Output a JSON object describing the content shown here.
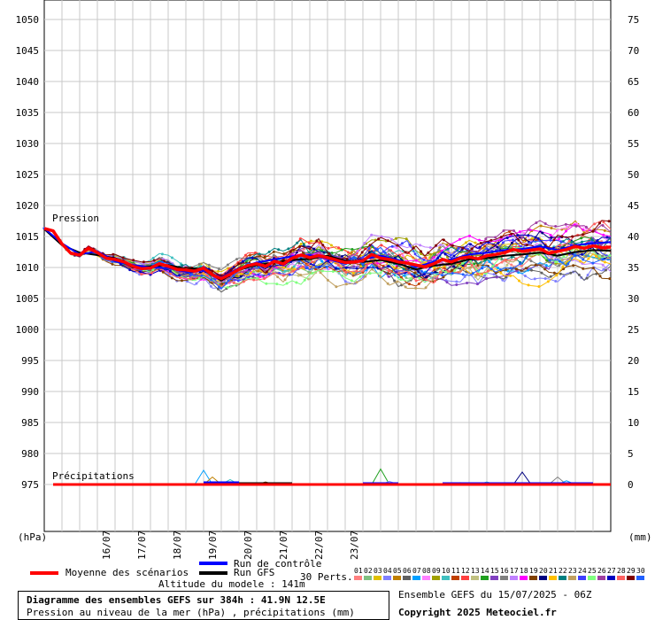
{
  "chart_data": {
    "type": "line",
    "left_axis": {
      "label": "(hPa)",
      "ticks": [
        1050,
        1045,
        1040,
        1035,
        1030,
        1025,
        1020,
        1015,
        1010,
        1005,
        1000,
        995,
        990,
        985,
        980,
        975
      ],
      "range": [
        966.8,
        1051.9
      ]
    },
    "right_axis": {
      "label": "(mm)",
      "ticks": [
        75,
        70,
        65,
        60,
        55,
        50,
        45,
        40,
        35,
        30,
        25,
        20,
        15,
        10,
        5,
        0
      ],
      "range": [
        -11.7,
        76.9
      ]
    },
    "x_labels": [
      "16/07",
      "17/07",
      "18/07",
      "19/07",
      "20/07",
      "21/07",
      "22/07",
      "23/07"
    ],
    "x_range_hours": [
      0,
      384
    ],
    "grid": true,
    "pressure_label": "Pression",
    "precip_label": "Précipitations",
    "mean_pressure": [
      [
        0,
        1016.3
      ],
      [
        6,
        1015.9
      ],
      [
        12,
        1013.8
      ],
      [
        18,
        1012.3
      ],
      [
        24,
        1012.0
      ],
      [
        30,
        1013.1
      ],
      [
        36,
        1012.4
      ],
      [
        42,
        1011.5
      ],
      [
        48,
        1011.3
      ],
      [
        54,
        1010.9
      ],
      [
        60,
        1010.2
      ],
      [
        66,
        1009.8
      ],
      [
        72,
        1009.9
      ],
      [
        78,
        1010.6
      ],
      [
        84,
        1010.2
      ],
      [
        90,
        1009.7
      ],
      [
        96,
        1009.6
      ],
      [
        102,
        1009.4
      ],
      [
        108,
        1009.9
      ],
      [
        114,
        1008.8
      ],
      [
        120,
        1008.2
      ],
      [
        126,
        1008.9
      ],
      [
        132,
        1009.7
      ],
      [
        138,
        1010.3
      ],
      [
        144,
        1010.6
      ],
      [
        150,
        1010.2
      ],
      [
        156,
        1011.0
      ],
      [
        162,
        1010.6
      ],
      [
        168,
        1011.5
      ],
      [
        174,
        1012.0
      ],
      [
        180,
        1011.6
      ],
      [
        186,
        1011.9
      ],
      [
        192,
        1011.6
      ],
      [
        198,
        1011.2
      ],
      [
        204,
        1010.8
      ],
      [
        210,
        1010.9
      ],
      [
        216,
        1011.1
      ],
      [
        222,
        1012.1
      ],
      [
        228,
        1011.5
      ],
      [
        234,
        1011.3
      ],
      [
        240,
        1010.9
      ],
      [
        246,
        1010.7
      ],
      [
        252,
        1010.4
      ],
      [
        258,
        1010.1
      ],
      [
        264,
        1010.6
      ],
      [
        270,
        1011.3
      ],
      [
        276,
        1010.9
      ],
      [
        282,
        1011.5
      ],
      [
        288,
        1011.7
      ],
      [
        294,
        1011.4
      ],
      [
        300,
        1011.9
      ],
      [
        306,
        1012.1
      ],
      [
        312,
        1012.4
      ],
      [
        318,
        1012.9
      ],
      [
        324,
        1012.6
      ],
      [
        330,
        1012.8
      ],
      [
        336,
        1013.0
      ],
      [
        342,
        1012.3
      ],
      [
        348,
        1012.6
      ],
      [
        354,
        1012.9
      ],
      [
        360,
        1013.4
      ],
      [
        366,
        1013.1
      ],
      [
        372,
        1013.5
      ],
      [
        378,
        1013.2
      ],
      [
        384,
        1013.3
      ]
    ],
    "control_pressure": [
      [
        0,
        1016.3
      ],
      [
        12,
        1013.9
      ],
      [
        24,
        1012.1
      ],
      [
        36,
        1012.6
      ],
      [
        48,
        1011.0
      ],
      [
        60,
        1010.4
      ],
      [
        72,
        1010.0
      ],
      [
        84,
        1009.9
      ],
      [
        96,
        1009.3
      ],
      [
        108,
        1009.5
      ],
      [
        120,
        1008.4
      ],
      [
        132,
        1009.9
      ],
      [
        144,
        1010.8
      ],
      [
        156,
        1011.3
      ],
      [
        168,
        1011.8
      ],
      [
        180,
        1012.0
      ],
      [
        192,
        1011.4
      ],
      [
        204,
        1010.6
      ],
      [
        216,
        1011.3
      ],
      [
        228,
        1011.9
      ],
      [
        240,
        1011.2
      ],
      [
        252,
        1010.1
      ],
      [
        264,
        1010.9
      ],
      [
        276,
        1011.3
      ],
      [
        288,
        1012.1
      ],
      [
        300,
        1012.4
      ],
      [
        312,
        1012.8
      ],
      [
        324,
        1013.0
      ],
      [
        336,
        1013.4
      ],
      [
        348,
        1012.8
      ],
      [
        360,
        1013.6
      ],
      [
        372,
        1013.9
      ],
      [
        384,
        1014.1
      ]
    ],
    "gfs_pressure": [
      [
        0,
        1016.2
      ],
      [
        12,
        1013.6
      ],
      [
        24,
        1012.4
      ],
      [
        36,
        1012.0
      ],
      [
        48,
        1011.5
      ],
      [
        60,
        1010.0
      ],
      [
        72,
        1010.2
      ],
      [
        84,
        1010.4
      ],
      [
        96,
        1009.8
      ],
      [
        108,
        1009.8
      ],
      [
        120,
        1007.9
      ],
      [
        132,
        1009.6
      ],
      [
        144,
        1010.4
      ],
      [
        156,
        1010.8
      ],
      [
        168,
        1011.2
      ],
      [
        180,
        1011.4
      ],
      [
        192,
        1011.9
      ],
      [
        204,
        1011.1
      ],
      [
        216,
        1010.9
      ],
      [
        228,
        1011.2
      ],
      [
        240,
        1010.6
      ],
      [
        252,
        1009.7
      ],
      [
        264,
        1010.3
      ],
      [
        276,
        1010.6
      ],
      [
        288,
        1011.3
      ],
      [
        300,
        1011.5
      ],
      [
        312,
        1011.9
      ],
      [
        324,
        1012.1
      ],
      [
        336,
        1012.4
      ],
      [
        348,
        1011.9
      ],
      [
        360,
        1012.5
      ],
      [
        372,
        1012.8
      ],
      [
        384,
        1012.7
      ]
    ],
    "precip_peaks": [
      {
        "hour": 108,
        "value": 2.3
      },
      {
        "hour": 114,
        "value": 1.2
      },
      {
        "hour": 126,
        "value": 0.8
      },
      {
        "hour": 150,
        "value": 0.4
      },
      {
        "hour": 228,
        "value": 2.5
      },
      {
        "hour": 234,
        "value": 0.5
      },
      {
        "hour": 324,
        "value": 2.0
      },
      {
        "hour": 348,
        "value": 1.2
      },
      {
        "hour": 354,
        "value": 0.6
      },
      {
        "hour": 282,
        "value": 0.3
      },
      {
        "hour": 300,
        "value": 0.4
      }
    ]
  },
  "legend": {
    "mean": "Moyenne des scénarios",
    "control": "Run de contrôle",
    "gfs": "Run GFS",
    "perts": "30 Perts.",
    "altitude": "Altitude du modele : 141m",
    "colors": {
      "mean": "#ff0000",
      "control": "#0000ff",
      "gfs": "#000000"
    }
  },
  "members": [
    {
      "n": "01",
      "c": "#ff8080"
    },
    {
      "n": "02",
      "c": "#80c080"
    },
    {
      "n": "03",
      "c": "#e0c000"
    },
    {
      "n": "04",
      "c": "#8080ff"
    },
    {
      "n": "05",
      "c": "#c08000"
    },
    {
      "n": "06",
      "c": "#606060"
    },
    {
      "n": "07",
      "c": "#00a0ff"
    },
    {
      "n": "08",
      "c": "#ff80ff"
    },
    {
      "n": "09",
      "c": "#a0a000"
    },
    {
      "n": "10",
      "c": "#40c0c0"
    },
    {
      "n": "11",
      "c": "#c04000"
    },
    {
      "n": "12",
      "c": "#ff4040"
    },
    {
      "n": "13",
      "c": "#c0c080"
    },
    {
      "n": "14",
      "c": "#20a020"
    },
    {
      "n": "15",
      "c": "#8040c0"
    },
    {
      "n": "16",
      "c": "#808080"
    },
    {
      "n": "17",
      "c": "#c080ff"
    },
    {
      "n": "18",
      "c": "#ff00ff"
    },
    {
      "n": "19",
      "c": "#804000"
    },
    {
      "n": "20",
      "c": "#000080"
    },
    {
      "n": "21",
      "c": "#ffc000"
    },
    {
      "n": "22",
      "c": "#008080"
    },
    {
      "n": "23",
      "c": "#c0a060"
    },
    {
      "n": "24",
      "c": "#4040ff"
    },
    {
      "n": "25",
      "c": "#80ff80"
    },
    {
      "n": "26",
      "c": "#a040a0"
    },
    {
      "n": "27",
      "c": "#0000c0"
    },
    {
      "n": "28",
      "c": "#ff6060"
    },
    {
      "n": "29",
      "c": "#800000"
    },
    {
      "n": "30",
      "c": "#2060ff"
    }
  ],
  "footer": {
    "title": "Diagramme des ensembles GEFS sur 384h : 41.9N 12.5E",
    "subtitle": "Pression au niveau de la mer (hPa) , précipitations (mm)",
    "run": "Ensemble GEFS du 15/07/2025 - 06Z",
    "copyright": "Copyright 2025 Meteociel.fr"
  }
}
